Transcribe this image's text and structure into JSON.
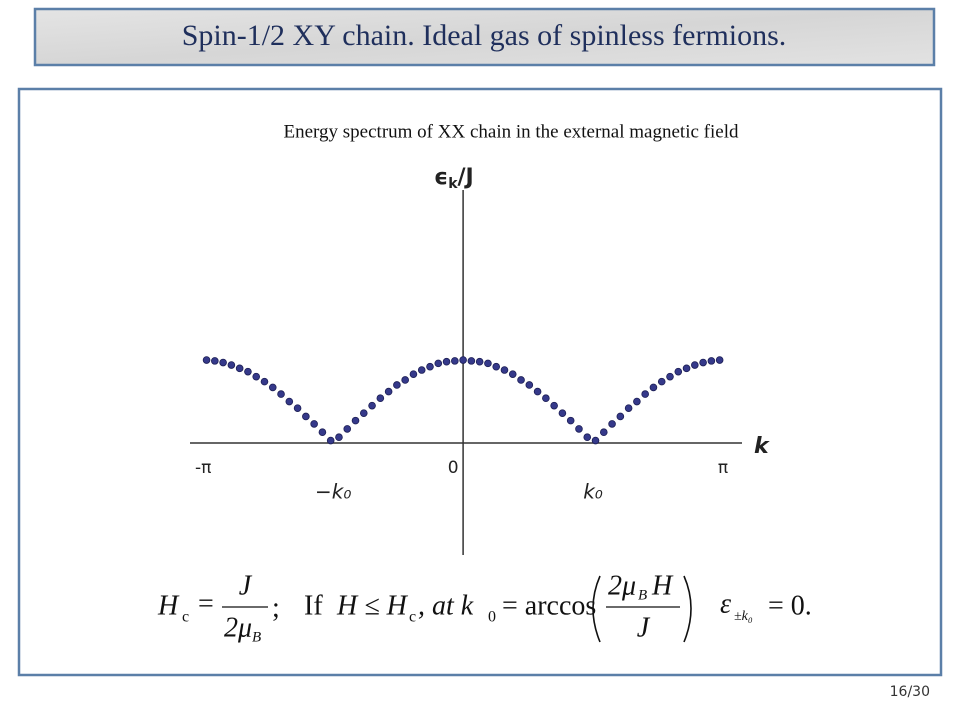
{
  "header": {
    "title": "Spin-1/2  XY chain. Ideal gas of spinless fermions."
  },
  "chart_data": {
    "type": "scatter",
    "title": "Energy spectrum of XX chain in the external magnetic field",
    "y_label": {
      "symbol": "ϵ",
      "sub": "k",
      "tail": "/J"
    },
    "x_label": "k",
    "xlim": [
      -3.3,
      3.37
    ],
    "ylim": [
      -1.35,
      3.05
    ],
    "xticks": [
      {
        "value": -3.14,
        "label": "-π"
      },
      {
        "value": -1.57,
        "label": "−k₀"
      },
      0,
      {
        "value": 1.57,
        "label": "k₀"
      },
      {
        "value": 3.14,
        "label": "π"
      }
    ],
    "color": "#35398a",
    "x": [
      -3.1,
      -3.0,
      -2.9,
      -2.8,
      -2.7,
      -2.6,
      -2.5,
      -2.4,
      -2.3,
      -2.2,
      -2.1,
      -2.0,
      -1.9,
      -1.8,
      -1.7,
      -1.6,
      -1.5,
      -1.4,
      -1.3,
      -1.2,
      -1.1,
      -1.0,
      -0.9,
      -0.8,
      -0.7,
      -0.6,
      -0.5,
      -0.4,
      -0.3,
      -0.2,
      -0.1,
      0,
      0.1,
      0.2,
      0.3,
      0.4,
      0.5,
      0.6,
      0.7,
      0.8,
      0.9,
      1.0,
      1.1,
      1.2,
      1.3,
      1.4,
      1.5,
      1.6,
      1.7,
      1.8,
      1.9,
      2.0,
      2.1,
      2.2,
      2.3,
      2.4,
      2.5,
      2.6,
      2.7,
      2.8,
      2.9,
      3.0,
      3.1
    ],
    "values": [
      1.0,
      0.99,
      0.97,
      0.94,
      0.9,
      0.86,
      0.8,
      0.74,
      0.67,
      0.59,
      0.5,
      0.42,
      0.32,
      0.23,
      0.13,
      0.03,
      0.07,
      0.17,
      0.27,
      0.36,
      0.45,
      0.54,
      0.62,
      0.7,
      0.76,
      0.83,
      0.88,
      0.92,
      0.96,
      0.98,
      0.99,
      1.0,
      0.99,
      0.98,
      0.96,
      0.92,
      0.88,
      0.83,
      0.76,
      0.7,
      0.62,
      0.54,
      0.45,
      0.36,
      0.27,
      0.17,
      0.07,
      0.03,
      0.13,
      0.23,
      0.32,
      0.42,
      0.5,
      0.59,
      0.67,
      0.74,
      0.8,
      0.86,
      0.9,
      0.94,
      0.97,
      0.99,
      1.0
    ]
  },
  "formula": {
    "hc": {
      "symbol": "H",
      "sub": "c",
      "eq": "=",
      "num": "J",
      "den": "2μ",
      "den_sub": "B",
      "end": ";"
    },
    "condition": {
      "if": "If",
      "lhs": "H ≤ H",
      "lhs_sub": "c",
      "at": ", at k",
      "at_sub": "0",
      "eq": "= arccos",
      "num": "2μ",
      "num_sub": "B",
      "num_tail": "H",
      "den": "J"
    },
    "result": {
      "symbol": "ε",
      "sub": "±k₀",
      "tail": "= 0."
    }
  },
  "footer": {
    "page": "16/30"
  }
}
